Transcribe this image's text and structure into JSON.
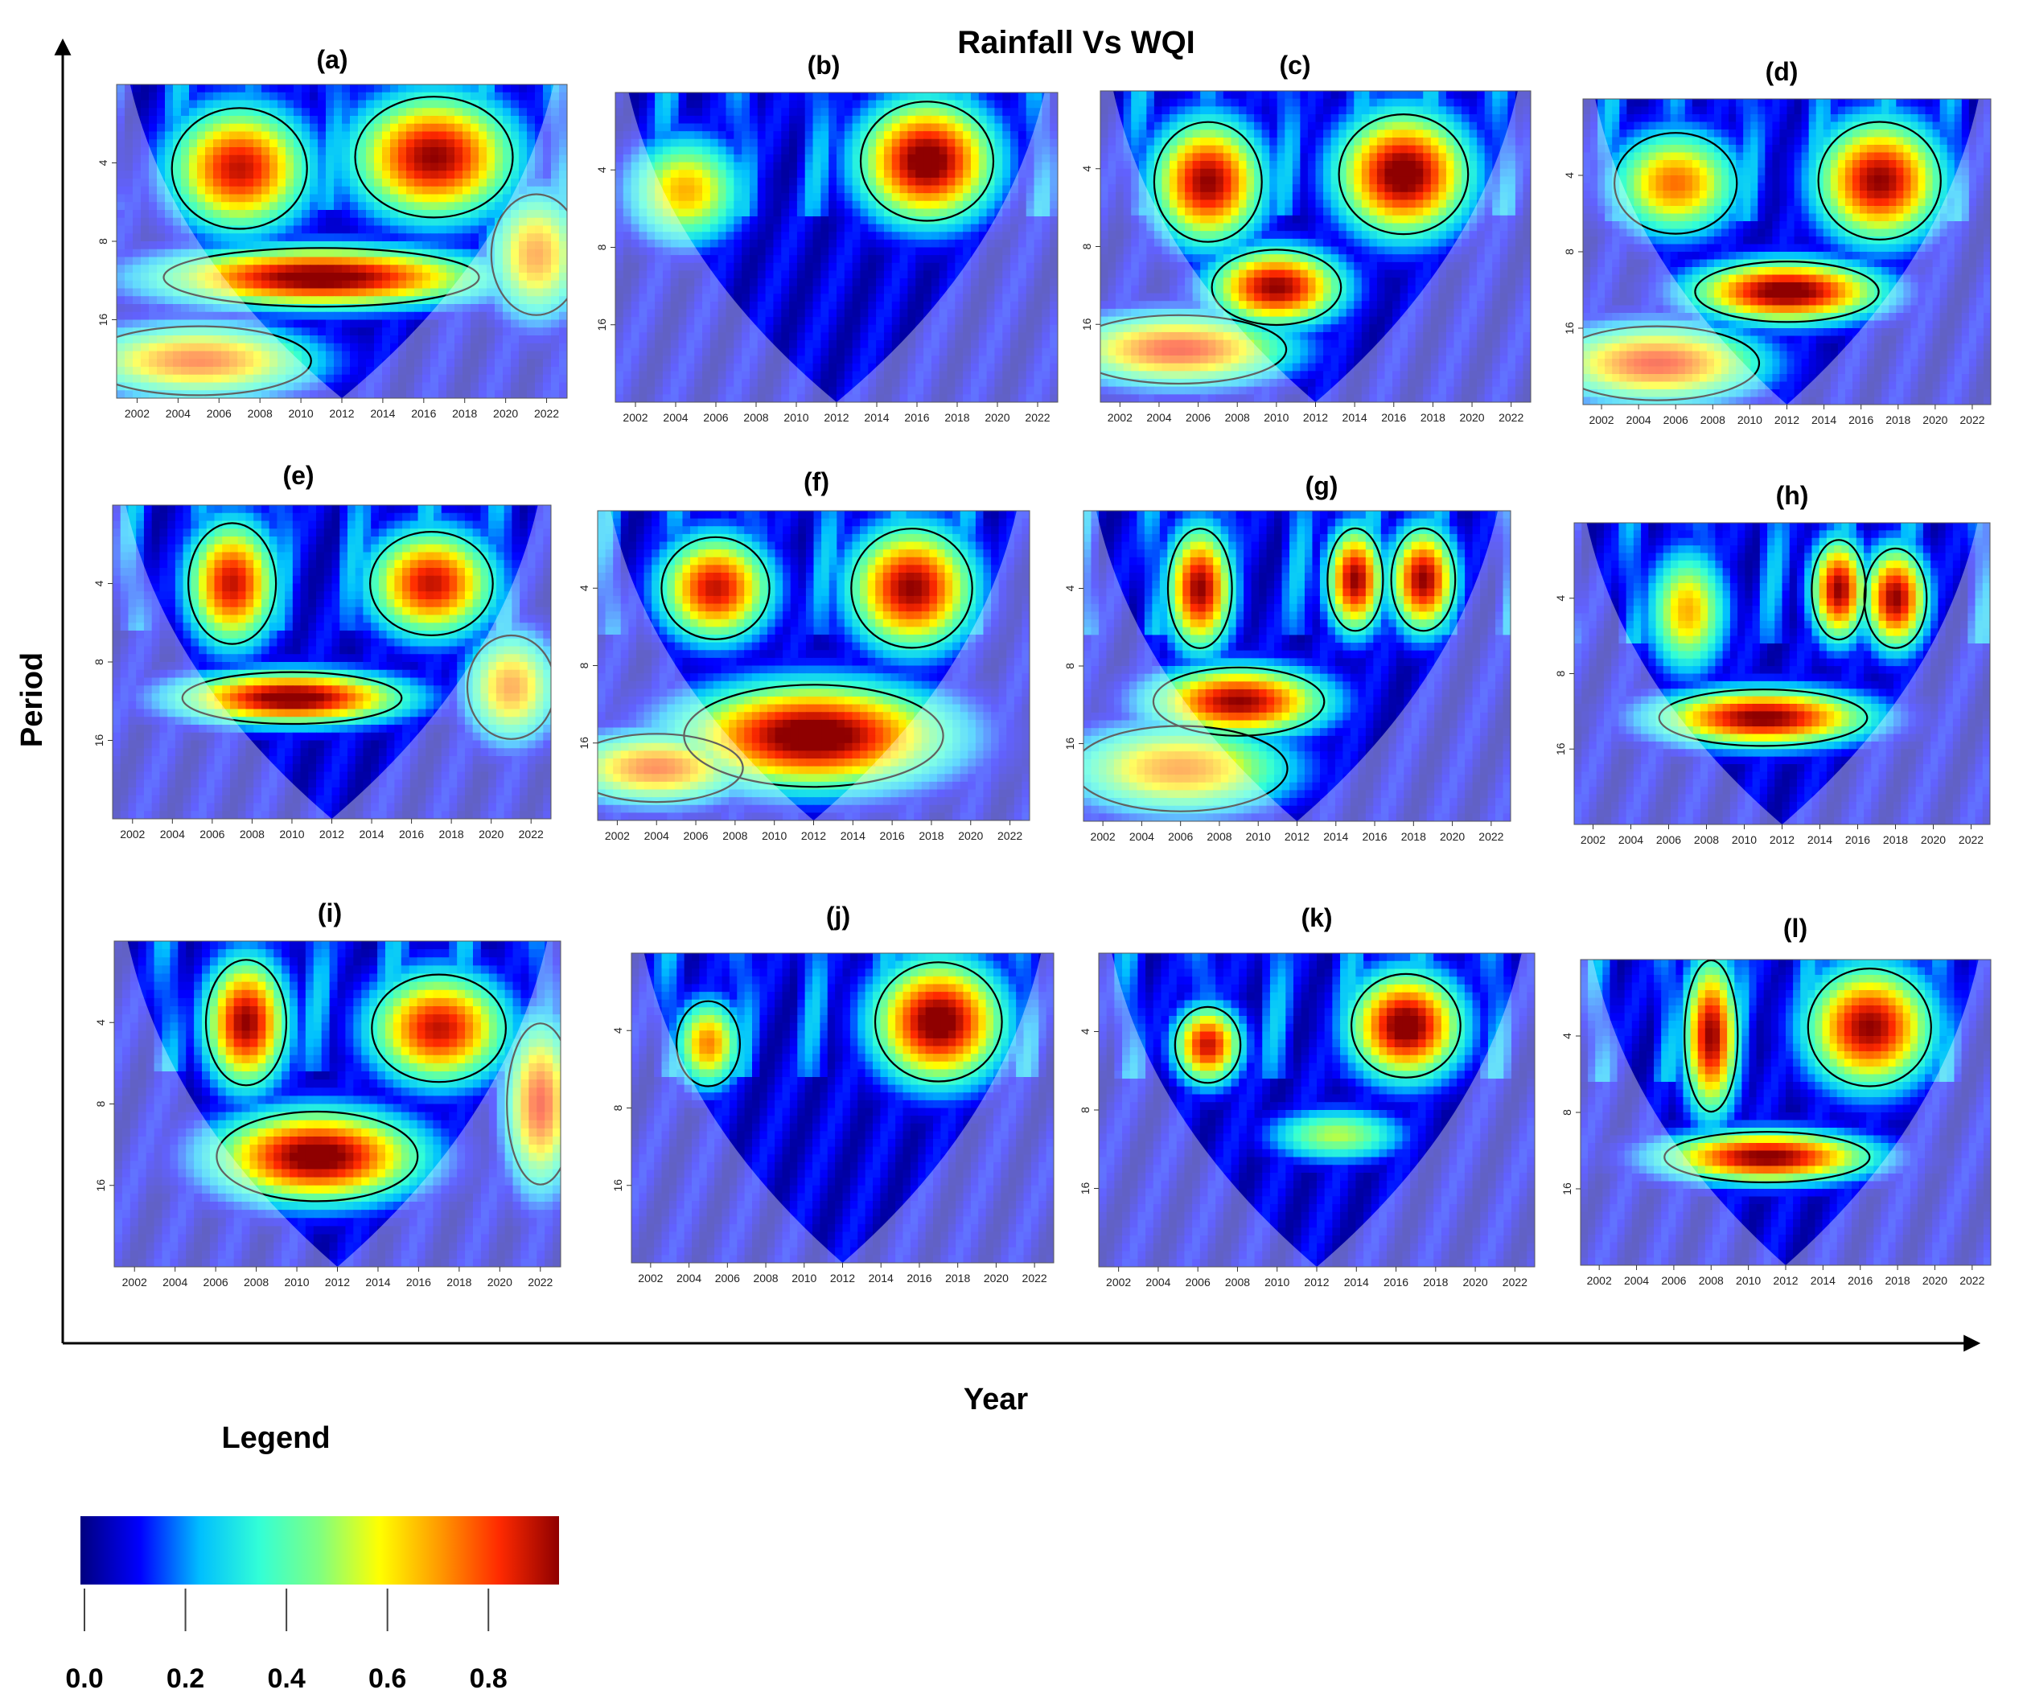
{
  "figure": {
    "title": "Rainfall Vs WQI",
    "xlabel": "Year",
    "ylabel": "Period"
  },
  "legend": {
    "title": "Legend",
    "ticks": [
      "0.0",
      "0.2",
      "0.4",
      "0.6",
      "0.8"
    ],
    "colors": [
      "#00007f",
      "#0000ff",
      "#00bfff",
      "#33ffd6",
      "#80ff80",
      "#ffff00",
      "#ff9a00",
      "#ff2a00",
      "#8f0000"
    ]
  },
  "chart_data": {
    "type": "heatmap",
    "description_kind": "wavelet coherence panels",
    "x_tick_labels": [
      "2002",
      "2004",
      "2006",
      "2008",
      "2010",
      "2012",
      "2014",
      "2016",
      "2018",
      "2020",
      "2022"
    ],
    "y_tick_labels": [
      "4",
      "8",
      "16"
    ],
    "xlim": [
      2001,
      2023
    ],
    "period_range": [
      2,
      32
    ],
    "colorbar_range": [
      0.0,
      0.9
    ],
    "panels": [
      {
        "label": "(a)",
        "blobs": [
          {
            "year": 2007,
            "period": 4.2,
            "dy": 3,
            "dp": 0.35,
            "v": 0.85
          },
          {
            "year": 2016.5,
            "period": 3.8,
            "dy": 3.5,
            "dp": 0.35,
            "v": 0.9
          },
          {
            "year": 2011,
            "period": 11,
            "dy": 7,
            "dp": 0.17,
            "v": 0.95
          },
          {
            "year": 2005,
            "period": 23,
            "dy": 5,
            "dp": 0.2,
            "v": 0.75
          },
          {
            "year": 2021.5,
            "period": 9,
            "dy": 2,
            "dp": 0.35,
            "v": 0.7
          }
        ]
      },
      {
        "label": "(b)",
        "blobs": [
          {
            "year": 2016.5,
            "period": 3.7,
            "dy": 3,
            "dp": 0.35,
            "v": 0.95
          },
          {
            "year": 2004.5,
            "period": 4.8,
            "dy": 2.5,
            "dp": 0.3,
            "v": 0.65
          }
        ]
      },
      {
        "label": "(c)",
        "blobs": [
          {
            "year": 2006.5,
            "period": 4.5,
            "dy": 2.5,
            "dp": 0.35,
            "v": 0.9
          },
          {
            "year": 2016.5,
            "period": 4.2,
            "dy": 3,
            "dp": 0.35,
            "v": 0.95
          },
          {
            "year": 2010,
            "period": 11.5,
            "dy": 3,
            "dp": 0.22,
            "v": 0.9
          },
          {
            "year": 2005,
            "period": 20,
            "dy": 5,
            "dp": 0.2,
            "v": 0.8
          }
        ]
      },
      {
        "label": "(d)",
        "blobs": [
          {
            "year": 2006,
            "period": 4.3,
            "dy": 3,
            "dp": 0.3,
            "v": 0.72
          },
          {
            "year": 2017,
            "period": 4.2,
            "dy": 3,
            "dp": 0.35,
            "v": 0.9
          },
          {
            "year": 2012,
            "period": 11.5,
            "dy": 4.5,
            "dp": 0.18,
            "v": 0.95
          },
          {
            "year": 2005,
            "period": 22,
            "dy": 5,
            "dp": 0.22,
            "v": 0.8
          }
        ]
      },
      {
        "label": "(e)",
        "blobs": [
          {
            "year": 2007,
            "period": 4,
            "dy": 2,
            "dp": 0.35,
            "v": 0.85
          },
          {
            "year": 2017,
            "period": 4,
            "dy": 2.8,
            "dp": 0.3,
            "v": 0.85
          },
          {
            "year": 2010,
            "period": 11,
            "dy": 5,
            "dp": 0.15,
            "v": 0.95
          },
          {
            "year": 2021,
            "period": 10,
            "dy": 2,
            "dp": 0.3,
            "v": 0.7
          }
        ]
      },
      {
        "label": "(f)",
        "blobs": [
          {
            "year": 2007,
            "period": 4,
            "dy": 2.5,
            "dp": 0.3,
            "v": 0.85
          },
          {
            "year": 2017,
            "period": 4,
            "dy": 2.8,
            "dp": 0.35,
            "v": 0.9
          },
          {
            "year": 2012,
            "period": 15,
            "dy": 6,
            "dp": 0.3,
            "v": 0.97
          },
          {
            "year": 2004,
            "period": 20,
            "dy": 4,
            "dp": 0.2,
            "v": 0.75
          }
        ]
      },
      {
        "label": "(g)",
        "blobs": [
          {
            "year": 2007,
            "period": 4,
            "dy": 1.5,
            "dp": 0.35,
            "v": 0.9
          },
          {
            "year": 2015,
            "period": 3.7,
            "dy": 1.3,
            "dp": 0.3,
            "v": 0.9
          },
          {
            "year": 2018.5,
            "period": 3.7,
            "dy": 1.5,
            "dp": 0.3,
            "v": 0.9
          },
          {
            "year": 2009,
            "period": 11,
            "dy": 4,
            "dp": 0.2,
            "v": 0.9
          },
          {
            "year": 2006,
            "period": 20,
            "dy": 5,
            "dp": 0.25,
            "v": 0.7
          }
        ]
      },
      {
        "label": "(h)",
        "blobs": [
          {
            "year": 2007,
            "period": 4.5,
            "dy": 1.8,
            "dp": 0.35,
            "v": 0.65
          },
          {
            "year": 2015,
            "period": 3.7,
            "dy": 1.3,
            "dp": 0.3,
            "v": 0.9
          },
          {
            "year": 2018,
            "period": 4,
            "dy": 1.5,
            "dp": 0.3,
            "v": 0.9
          },
          {
            "year": 2011,
            "period": 12,
            "dy": 5,
            "dp": 0.17,
            "v": 0.92
          }
        ]
      },
      {
        "label": "(i)",
        "blobs": [
          {
            "year": 2007.5,
            "period": 4,
            "dy": 1.8,
            "dp": 0.35,
            "v": 0.9
          },
          {
            "year": 2017,
            "period": 4.2,
            "dy": 3,
            "dp": 0.3,
            "v": 0.85
          },
          {
            "year": 2011,
            "period": 12.5,
            "dy": 4.5,
            "dp": 0.25,
            "v": 0.95
          },
          {
            "year": 2022,
            "period": 8,
            "dy": 1.5,
            "dp": 0.45,
            "v": 0.8
          }
        ]
      },
      {
        "label": "(j)",
        "blobs": [
          {
            "year": 2017,
            "period": 3.7,
            "dy": 3,
            "dp": 0.35,
            "v": 0.95
          },
          {
            "year": 2005,
            "period": 4.5,
            "dy": 1.5,
            "dp": 0.25,
            "v": 0.7
          }
        ]
      },
      {
        "label": "(k)",
        "blobs": [
          {
            "year": 2016.5,
            "period": 3.8,
            "dy": 2.5,
            "dp": 0.3,
            "v": 0.95
          },
          {
            "year": 2006.5,
            "period": 4.5,
            "dy": 1.5,
            "dp": 0.22,
            "v": 0.85
          },
          {
            "year": 2013,
            "period": 10,
            "dy": 3,
            "dp": 0.15,
            "v": 0.5
          }
        ]
      },
      {
        "label": "(l)",
        "blobs": [
          {
            "year": 2008,
            "period": 4,
            "dy": 1.3,
            "dp": 0.45,
            "v": 0.9
          },
          {
            "year": 2016.5,
            "period": 3.7,
            "dy": 3,
            "dp": 0.35,
            "v": 0.9
          },
          {
            "year": 2011,
            "period": 12,
            "dy": 5,
            "dp": 0.15,
            "v": 0.92
          }
        ]
      }
    ]
  }
}
